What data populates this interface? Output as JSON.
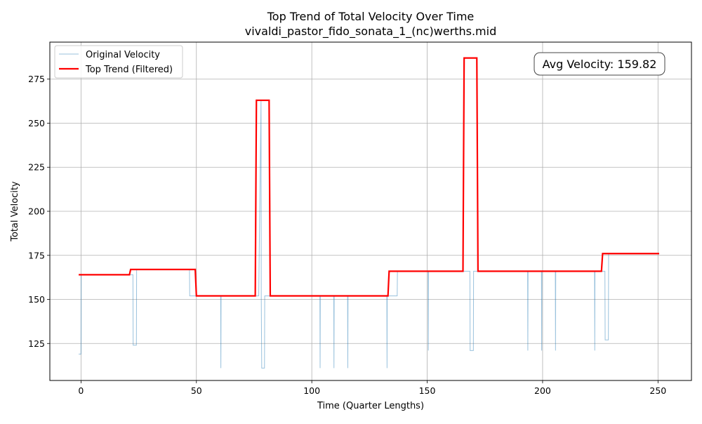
{
  "chart_data": {
    "type": "line",
    "title": "Top Trend of Total Velocity Over Time",
    "subtitle": "vivaldi_pastor_fido_sonata_1_(nc)werths.mid",
    "xlabel": "Time (Quarter Lengths)",
    "ylabel": "Total Velocity",
    "xlim": [
      -13.5,
      264.5
    ],
    "ylim": [
      104,
      296
    ],
    "xticks": [
      0,
      50,
      100,
      150,
      200,
      250
    ],
    "yticks": [
      125,
      150,
      175,
      200,
      225,
      250,
      275
    ],
    "grid": true,
    "legend_position": "top-left",
    "annotation": "Avg Velocity: 159.82",
    "series": [
      {
        "name": "Original Velocity",
        "color": "#1f77b4",
        "x": [
          -1,
          0,
          0.1,
          0.3,
          21,
          22.5,
          22.6,
          24,
          24.1,
          47,
          47.1,
          60.5,
          60.6,
          60.7,
          77,
          78,
          78.1,
          78.3,
          79.5,
          79.6,
          81.5,
          81.6,
          103.5,
          103.6,
          103.7,
          109.5,
          109.6,
          109.7,
          115.5,
          115.6,
          115.7,
          132.5,
          132.6,
          132.7,
          137,
          137.1,
          150.4,
          150.5,
          150.6,
          167,
          168.5,
          168.6,
          170,
          170.1,
          172,
          193.5,
          193.6,
          193.7,
          199.5,
          199.6,
          199.7,
          205.5,
          205.6,
          205.7,
          222.5,
          222.6,
          222.7,
          226,
          227,
          227.1,
          228.5,
          228.6,
          250.5
        ],
        "values": [
          119,
          119,
          164,
          164,
          164,
          164,
          124,
          124,
          167,
          167,
          152,
          152,
          111,
          152,
          152,
          263,
          152,
          111,
          111,
          152,
          152,
          152,
          152,
          111,
          152,
          152,
          111,
          152,
          152,
          111,
          152,
          152,
          111,
          152,
          152,
          166,
          166,
          121,
          166,
          166,
          166,
          121,
          121,
          166,
          166,
          166,
          121,
          166,
          166,
          121,
          166,
          166,
          121,
          166,
          166,
          121,
          166,
          166,
          166,
          127,
          127,
          176,
          176
        ]
      },
      {
        "name": "Top Trend (Filtered)",
        "color": "#ff0000",
        "x": [
          -1,
          21,
          21.5,
          49.5,
          50,
          75.5,
          76,
          81.5,
          82,
          133,
          133.5,
          165.5,
          166,
          171.5,
          172,
          225.5,
          226,
          250.5
        ],
        "values": [
          164,
          164,
          167,
          167,
          152,
          152,
          263,
          263,
          152,
          152,
          166,
          166,
          287,
          287,
          166,
          166,
          176,
          176
        ]
      }
    ]
  }
}
